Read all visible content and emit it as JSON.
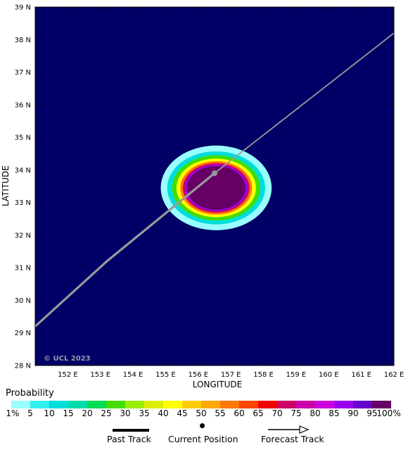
{
  "map": {
    "lon_range": [
      151,
      162
    ],
    "lat_range": [
      28,
      39
    ],
    "lon_ticks": [
      "152 E",
      "153 E",
      "154 E",
      "155 E",
      "156 E",
      "157 E",
      "158 E",
      "159 E",
      "160 E",
      "161 E",
      "162 E"
    ],
    "lat_ticks": [
      "28 N",
      "29 N",
      "30 N",
      "31 N",
      "32 N",
      "33 N",
      "34 N",
      "35 N",
      "36 N",
      "37 N",
      "38 N",
      "39 N"
    ],
    "xlabel": "LONGITUDE",
    "ylabel": "LATITUDE",
    "background_color": "#000066",
    "watermark": "© UCL 2023"
  },
  "track": {
    "color": "#999999",
    "current_position": {
      "lon": 156.5,
      "lat": 33.9
    },
    "past_points": [
      {
        "lon": 151,
        "lat": 29.2
      },
      {
        "lon": 153.2,
        "lat": 31.2
      },
      {
        "lon": 156.5,
        "lat": 33.9
      }
    ],
    "forecast_points": [
      {
        "lon": 156.5,
        "lat": 33.9
      },
      {
        "lon": 162,
        "lat": 38.2
      }
    ]
  },
  "probability_field": {
    "center": {
      "lon": 156.55,
      "lat": 33.45
    },
    "levels": [
      {
        "pct": 1,
        "lon_radius": 1.7,
        "lat_radius": 1.3
      },
      {
        "pct": 10,
        "lon_radius": 1.5,
        "lat_radius": 1.12
      },
      {
        "pct": 25,
        "lon_radius": 1.35,
        "lat_radius": 1.0
      },
      {
        "pct": 40,
        "lon_radius": 1.22,
        "lat_radius": 0.9
      },
      {
        "pct": 55,
        "lon_radius": 1.1,
        "lat_radius": 0.82
      },
      {
        "pct": 70,
        "lon_radius": 1.02,
        "lat_radius": 0.76
      },
      {
        "pct": 85,
        "lon_radius": 0.96,
        "lat_radius": 0.71
      },
      {
        "pct": 95,
        "lon_radius": 0.9,
        "lat_radius": 0.67
      }
    ]
  },
  "legend": {
    "title": "Probability",
    "labels": [
      "1%",
      "5",
      "10",
      "15",
      "20",
      "25",
      "30",
      "35",
      "40",
      "45",
      "50",
      "55",
      "60",
      "65",
      "70",
      "75",
      "80",
      "85",
      "90",
      "95",
      "100%"
    ],
    "colors": [
      "#99ffff",
      "#33eeee",
      "#00dddd",
      "#00ddaa",
      "#00dd55",
      "#44dd00",
      "#99ee00",
      "#ddee00",
      "#ffff00",
      "#ffcc00",
      "#ffaa00",
      "#ff7700",
      "#ff4400",
      "#ee0000",
      "#cc0066",
      "#cc00aa",
      "#cc00dd",
      "#9900ee",
      "#6600cc",
      "#660066"
    ]
  },
  "key": {
    "past_track": "Past Track",
    "current_position": "Current Position",
    "forecast_track": "Forecast Track"
  }
}
